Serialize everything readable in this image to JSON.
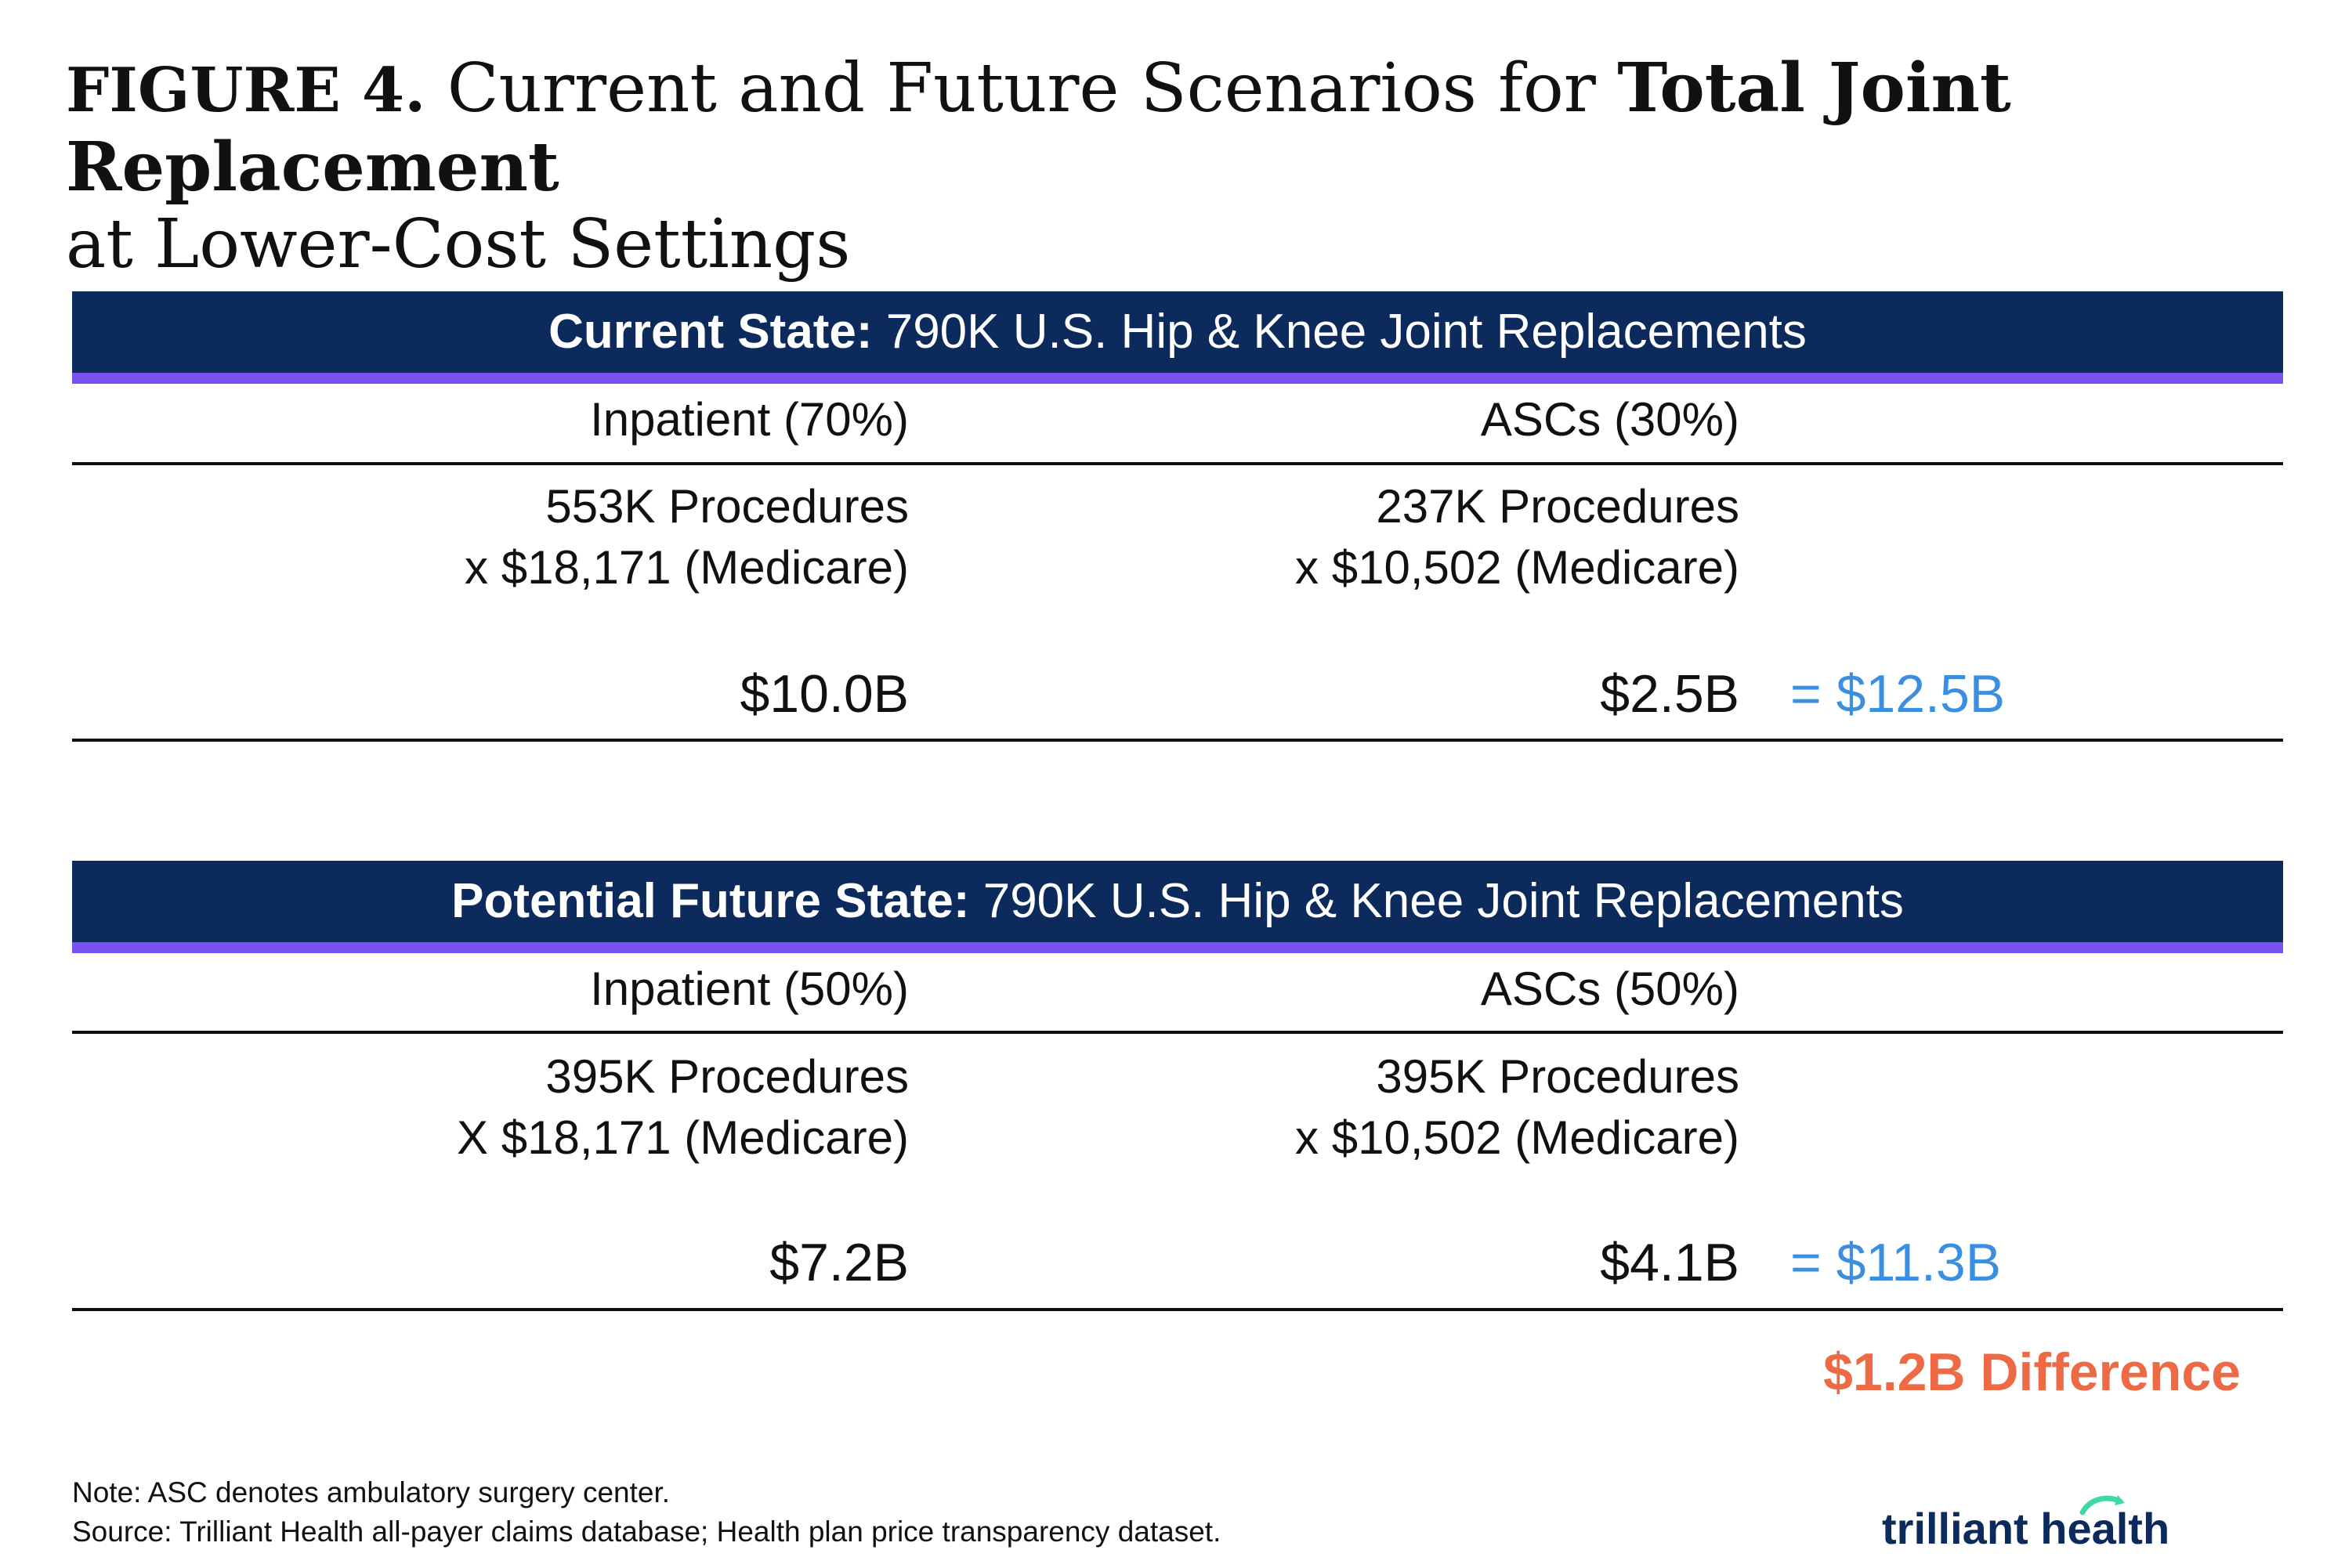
{
  "title": {
    "figure_label": "FIGURE 4.",
    "part1": "Current and Future Scenarios for",
    "bold": "Total Joint Replacement",
    "part2": "at Lower-Cost Settings"
  },
  "current": {
    "header_bold": "Current State:",
    "header_rest": "790K U.S. Hip & Knee Joint Replacements",
    "inpatient_label": "Inpatient (70%)",
    "asc_label": "ASCs (30%)",
    "inpatient_procedures": "553K Procedures",
    "inpatient_price": "x $18,171 (Medicare)",
    "asc_procedures": "237K Procedures",
    "asc_price": "x $10,502 (Medicare)",
    "inpatient_amount": "$10.0B",
    "asc_amount": "$2.5B",
    "total": "= $12.5B"
  },
  "future": {
    "header_bold": "Potential Future State:",
    "header_rest": "790K U.S. Hip & Knee Joint Replacements",
    "inpatient_label": "Inpatient (50%)",
    "asc_label": "ASCs (50%)",
    "inpatient_procedures": "395K Procedures",
    "inpatient_price": "X $18,171 (Medicare)",
    "asc_procedures": "395K Procedures",
    "asc_price": "x $10,502 (Medicare)",
    "inpatient_amount": "$7.2B",
    "asc_amount": "$4.1B",
    "total": "= $11.3B"
  },
  "difference": "$1.2B Difference",
  "footnotes": {
    "note": "Note: ASC denotes ambulatory surgery center.",
    "source": "Source: Trilliant Health all-payer claims database; Health plan price transparency dataset."
  },
  "logo": {
    "text": "trilliant health",
    "icon": "trilliant-health-logo"
  },
  "colors": {
    "header_bg": "#0c2a5b",
    "header_accent": "#7a52f0",
    "total": "#3a8fe0",
    "difference": "#ee6a45"
  },
  "chart_data": {
    "type": "table",
    "title": "Current and Future Scenarios for Total Joint Replacement at Lower-Cost Settings",
    "tables": [
      {
        "name": "Current State",
        "total_procedures": "790K",
        "columns": [
          "Inpatient (70%)",
          "ASCs (30%)"
        ],
        "procedures": [
          "553K",
          "237K"
        ],
        "price_medicare": [
          18171,
          10502
        ],
        "amounts_billion": [
          10.0,
          2.5
        ],
        "total_billion": 12.5
      },
      {
        "name": "Potential Future State",
        "total_procedures": "790K",
        "columns": [
          "Inpatient (50%)",
          "ASCs (50%)"
        ],
        "procedures": [
          "395K",
          "395K"
        ],
        "price_medicare": [
          18171,
          10502
        ],
        "amounts_billion": [
          7.2,
          4.1
        ],
        "total_billion": 11.3
      }
    ],
    "difference_billion": 1.2
  }
}
